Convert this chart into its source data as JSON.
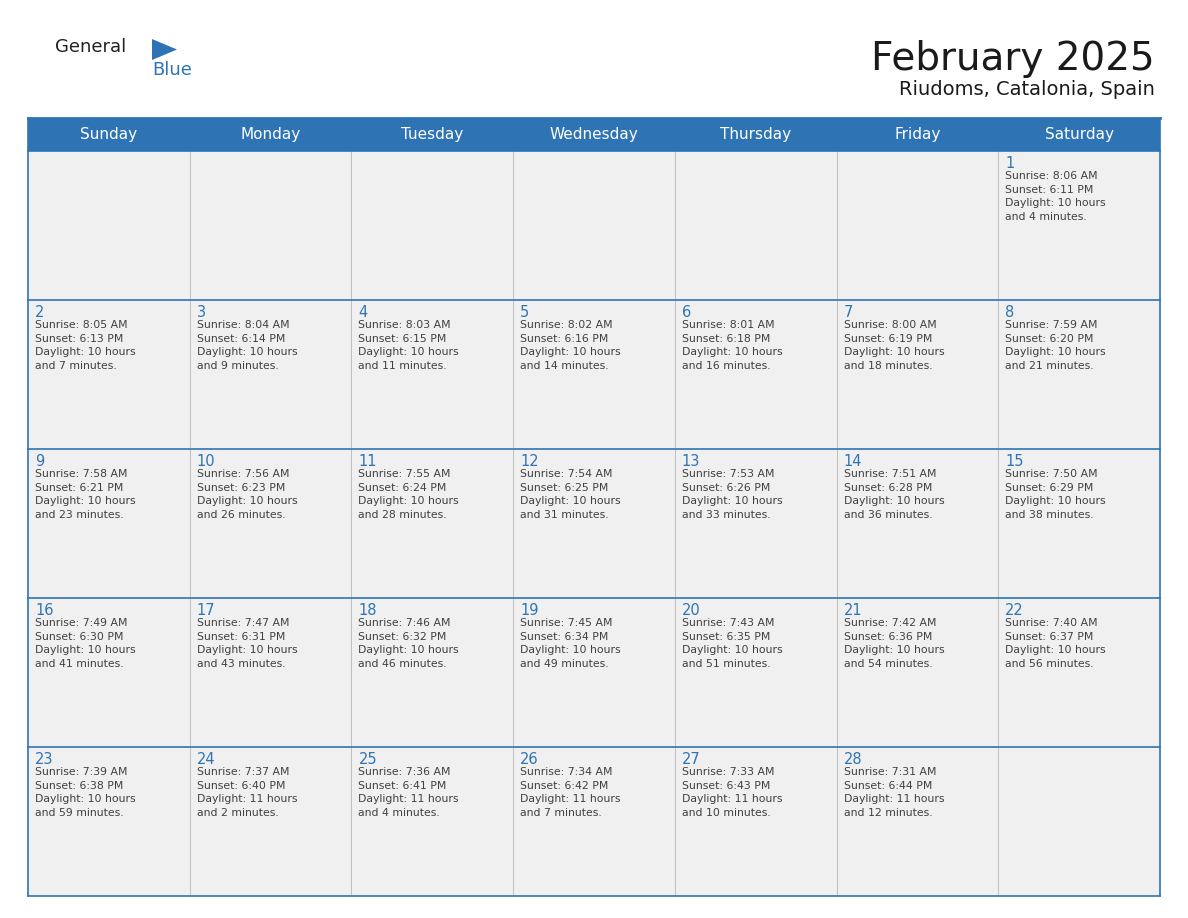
{
  "title": "February 2025",
  "subtitle": "Riudoms, Catalonia, Spain",
  "header_bg": "#2E74B5",
  "header_text_color": "#FFFFFF",
  "cell_bg_light": "#F0F0F0",
  "border_color": "#2E74B5",
  "row_divider_color": "#3A6EA5",
  "day_number_color": "#2E74B5",
  "info_text_color": "#404040",
  "days_of_week": [
    "Sunday",
    "Monday",
    "Tuesday",
    "Wednesday",
    "Thursday",
    "Friday",
    "Saturday"
  ],
  "weeks": [
    [
      {
        "day": null,
        "info": null
      },
      {
        "day": null,
        "info": null
      },
      {
        "day": null,
        "info": null
      },
      {
        "day": null,
        "info": null
      },
      {
        "day": null,
        "info": null
      },
      {
        "day": null,
        "info": null
      },
      {
        "day": 1,
        "info": "Sunrise: 8:06 AM\nSunset: 6:11 PM\nDaylight: 10 hours\nand 4 minutes."
      }
    ],
    [
      {
        "day": 2,
        "info": "Sunrise: 8:05 AM\nSunset: 6:13 PM\nDaylight: 10 hours\nand 7 minutes."
      },
      {
        "day": 3,
        "info": "Sunrise: 8:04 AM\nSunset: 6:14 PM\nDaylight: 10 hours\nand 9 minutes."
      },
      {
        "day": 4,
        "info": "Sunrise: 8:03 AM\nSunset: 6:15 PM\nDaylight: 10 hours\nand 11 minutes."
      },
      {
        "day": 5,
        "info": "Sunrise: 8:02 AM\nSunset: 6:16 PM\nDaylight: 10 hours\nand 14 minutes."
      },
      {
        "day": 6,
        "info": "Sunrise: 8:01 AM\nSunset: 6:18 PM\nDaylight: 10 hours\nand 16 minutes."
      },
      {
        "day": 7,
        "info": "Sunrise: 8:00 AM\nSunset: 6:19 PM\nDaylight: 10 hours\nand 18 minutes."
      },
      {
        "day": 8,
        "info": "Sunrise: 7:59 AM\nSunset: 6:20 PM\nDaylight: 10 hours\nand 21 minutes."
      }
    ],
    [
      {
        "day": 9,
        "info": "Sunrise: 7:58 AM\nSunset: 6:21 PM\nDaylight: 10 hours\nand 23 minutes."
      },
      {
        "day": 10,
        "info": "Sunrise: 7:56 AM\nSunset: 6:23 PM\nDaylight: 10 hours\nand 26 minutes."
      },
      {
        "day": 11,
        "info": "Sunrise: 7:55 AM\nSunset: 6:24 PM\nDaylight: 10 hours\nand 28 minutes."
      },
      {
        "day": 12,
        "info": "Sunrise: 7:54 AM\nSunset: 6:25 PM\nDaylight: 10 hours\nand 31 minutes."
      },
      {
        "day": 13,
        "info": "Sunrise: 7:53 AM\nSunset: 6:26 PM\nDaylight: 10 hours\nand 33 minutes."
      },
      {
        "day": 14,
        "info": "Sunrise: 7:51 AM\nSunset: 6:28 PM\nDaylight: 10 hours\nand 36 minutes."
      },
      {
        "day": 15,
        "info": "Sunrise: 7:50 AM\nSunset: 6:29 PM\nDaylight: 10 hours\nand 38 minutes."
      }
    ],
    [
      {
        "day": 16,
        "info": "Sunrise: 7:49 AM\nSunset: 6:30 PM\nDaylight: 10 hours\nand 41 minutes."
      },
      {
        "day": 17,
        "info": "Sunrise: 7:47 AM\nSunset: 6:31 PM\nDaylight: 10 hours\nand 43 minutes."
      },
      {
        "day": 18,
        "info": "Sunrise: 7:46 AM\nSunset: 6:32 PM\nDaylight: 10 hours\nand 46 minutes."
      },
      {
        "day": 19,
        "info": "Sunrise: 7:45 AM\nSunset: 6:34 PM\nDaylight: 10 hours\nand 49 minutes."
      },
      {
        "day": 20,
        "info": "Sunrise: 7:43 AM\nSunset: 6:35 PM\nDaylight: 10 hours\nand 51 minutes."
      },
      {
        "day": 21,
        "info": "Sunrise: 7:42 AM\nSunset: 6:36 PM\nDaylight: 10 hours\nand 54 minutes."
      },
      {
        "day": 22,
        "info": "Sunrise: 7:40 AM\nSunset: 6:37 PM\nDaylight: 10 hours\nand 56 minutes."
      }
    ],
    [
      {
        "day": 23,
        "info": "Sunrise: 7:39 AM\nSunset: 6:38 PM\nDaylight: 10 hours\nand 59 minutes."
      },
      {
        "day": 24,
        "info": "Sunrise: 7:37 AM\nSunset: 6:40 PM\nDaylight: 11 hours\nand 2 minutes."
      },
      {
        "day": 25,
        "info": "Sunrise: 7:36 AM\nSunset: 6:41 PM\nDaylight: 11 hours\nand 4 minutes."
      },
      {
        "day": 26,
        "info": "Sunrise: 7:34 AM\nSunset: 6:42 PM\nDaylight: 11 hours\nand 7 minutes."
      },
      {
        "day": 27,
        "info": "Sunrise: 7:33 AM\nSunset: 6:43 PM\nDaylight: 11 hours\nand 10 minutes."
      },
      {
        "day": 28,
        "info": "Sunrise: 7:31 AM\nSunset: 6:44 PM\nDaylight: 11 hours\nand 12 minutes."
      },
      {
        "day": null,
        "info": null
      }
    ]
  ],
  "header_fontsize": 11,
  "day_num_fontsize": 10.5,
  "info_fontsize": 7.8,
  "title_fontsize": 28,
  "subtitle_fontsize": 14,
  "logo_general_fontsize": 13,
  "logo_blue_fontsize": 13
}
